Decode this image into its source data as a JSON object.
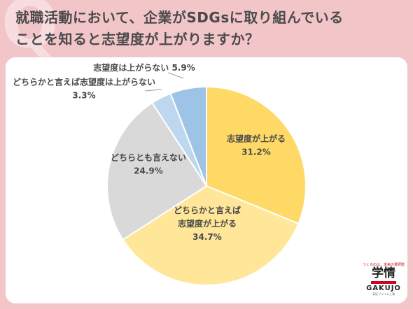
{
  "header": {
    "title_line1": "就職活動において、企業がSDGsに取り組んでいる",
    "title_line2": "ことを知ると志望度が上がりますか？",
    "bg_mark": "Q"
  },
  "colors": {
    "background": "#f2c6c9",
    "card": "#ffffff",
    "text": "#4a4a4a",
    "slices": [
      "#ffd966",
      "#ffe699",
      "#d9d9d9",
      "#bdd7ee",
      "#9dc3e6"
    ],
    "logo_accent": "#d0021b"
  },
  "chart_data": {
    "type": "pie",
    "title": "",
    "start_angle_deg": 0,
    "direction": "clockwise",
    "slices": [
      {
        "lines": [
          "志望度が上がる",
          "31.2%"
        ],
        "value": 31.2
      },
      {
        "lines": [
          "どちらかと言えば",
          "志望度が上がる",
          "34.7%"
        ],
        "value": 34.7
      },
      {
        "lines": [
          "どちらとも言えない",
          "24.9%"
        ],
        "value": 24.9
      },
      {
        "lines": [
          "どちらかと言えば志望度は上がらない",
          "3.3%"
        ],
        "value": 3.3
      },
      {
        "lines": [
          "志望度は上がらない 5.9%"
        ],
        "value": 5.9
      }
    ]
  },
  "logo": {
    "tagline": "つくるのは、未来の選択肢",
    "kanji": "学情",
    "name": "GAKUJO",
    "sub": "東証プライム上場"
  }
}
